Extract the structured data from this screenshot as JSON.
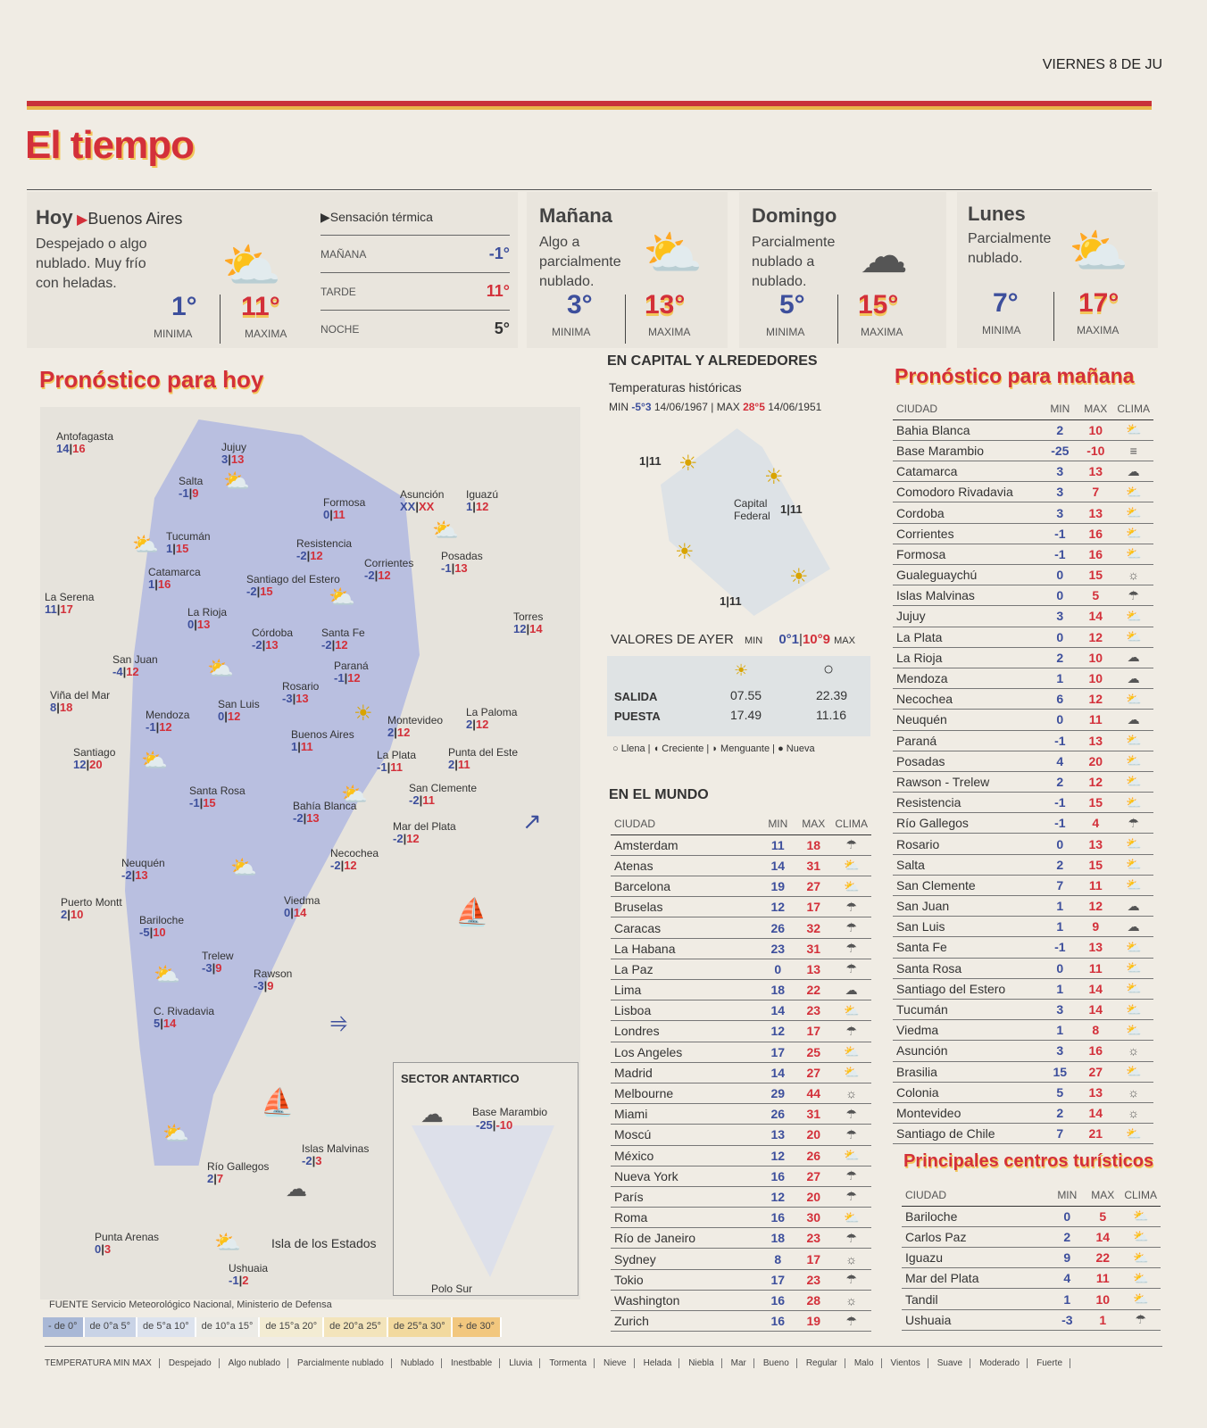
{
  "header": {
    "date": "VIERNES 8 DE JU",
    "title": "El tiempo"
  },
  "today": {
    "title": "Hoy",
    "city": "Buenos Aires",
    "desc": "Despejado o algo nublado. Muy frío con heladas.",
    "min": "1°",
    "max": "11°",
    "min_label": "MINIMA",
    "max_label": "MAXIMA",
    "icon": "partly-cloudy"
  },
  "sensacion": {
    "title": "Sensación térmica",
    "rows": [
      {
        "label": "MAÑANA",
        "value": "-1°",
        "kind": "min"
      },
      {
        "label": "TARDE",
        "value": "11°",
        "kind": "max"
      },
      {
        "label": "NOCHE",
        "value": "5°",
        "kind": "neutral"
      }
    ]
  },
  "days": [
    {
      "title": "Mañana",
      "desc": "Algo a parcialmente nublado.",
      "min": "3°",
      "max": "13°",
      "icon": "partly-cloudy"
    },
    {
      "title": "Domingo",
      "desc": "Parcialmente nublado a nublado.",
      "min": "5°",
      "max": "15°",
      "icon": "cloudy"
    },
    {
      "title": "Lunes",
      "desc": "Parcialmente nublado.",
      "min": "7°",
      "max": "17°",
      "icon": "partly-cloudy"
    }
  ],
  "labels": {
    "min": "MINIMA",
    "max": "MAXIMA"
  },
  "map": {
    "title": "Pronóstico para hoy",
    "cities": [
      {
        "name": "Antofagasta",
        "min": "14",
        "max": "16"
      },
      {
        "name": "Jujuy",
        "min": "3",
        "max": "13"
      },
      {
        "name": "Salta",
        "min": "-1",
        "max": "9"
      },
      {
        "name": "Formosa",
        "min": "0",
        "max": "11"
      },
      {
        "name": "Asunción",
        "min": "XX",
        "max": "XX"
      },
      {
        "name": "Iguazú",
        "min": "1",
        "max": "12"
      },
      {
        "name": "Tucumán",
        "min": "1",
        "max": "15"
      },
      {
        "name": "Resistencia",
        "min": "-2",
        "max": "12"
      },
      {
        "name": "Corrientes",
        "min": "-2",
        "max": "12"
      },
      {
        "name": "Posadas",
        "min": "-1",
        "max": "13"
      },
      {
        "name": "Catamarca",
        "min": "1",
        "max": "16"
      },
      {
        "name": "Santiago del Estero",
        "min": "-2",
        "max": "15"
      },
      {
        "name": "La Serena",
        "min": "11",
        "max": "17"
      },
      {
        "name": "La Rioja",
        "min": "0",
        "max": "13"
      },
      {
        "name": "Córdoba",
        "min": "-2",
        "max": "13"
      },
      {
        "name": "Santa Fe",
        "min": "-2",
        "max": "12"
      },
      {
        "name": "Torres",
        "min": "12",
        "max": "14"
      },
      {
        "name": "San Juan",
        "min": "-4",
        "max": "12"
      },
      {
        "name": "Paraná",
        "min": "-1",
        "max": "12"
      },
      {
        "name": "Rosario",
        "min": "-3",
        "max": "13"
      },
      {
        "name": "Viña del Mar",
        "min": "8",
        "max": "18"
      },
      {
        "name": "San Luis",
        "min": "0",
        "max": "12"
      },
      {
        "name": "Mendoza",
        "min": "-1",
        "max": "12"
      },
      {
        "name": "Montevideo",
        "min": "2",
        "max": "12"
      },
      {
        "name": "La Paloma",
        "min": "2",
        "max": "12"
      },
      {
        "name": "Buenos Aires",
        "min": "1",
        "max": "11"
      },
      {
        "name": "La Plata",
        "min": "-1",
        "max": "11"
      },
      {
        "name": "Punta del Este",
        "min": "2",
        "max": "11"
      },
      {
        "name": "Santiago",
        "min": "12",
        "max": "20"
      },
      {
        "name": "Santa Rosa",
        "min": "-1",
        "max": "15"
      },
      {
        "name": "San Clemente",
        "min": "-2",
        "max": "11"
      },
      {
        "name": "Bahía Blanca",
        "min": "-2",
        "max": "13"
      },
      {
        "name": "Mar del Plata",
        "min": "-2",
        "max": "12"
      },
      {
        "name": "Necochea",
        "min": "-2",
        "max": "12"
      },
      {
        "name": "Neuquén",
        "min": "-2",
        "max": "13"
      },
      {
        "name": "Puerto Montt",
        "min": "2",
        "max": "10"
      },
      {
        "name": "Viedma",
        "min": "0",
        "max": "14"
      },
      {
        "name": "Bariloche",
        "min": "-5",
        "max": "10"
      },
      {
        "name": "Trelew",
        "min": "-3",
        "max": "9"
      },
      {
        "name": "Rawson",
        "min": "-3",
        "max": "9"
      },
      {
        "name": "C. Rivadavia",
        "min": "5",
        "max": "14"
      },
      {
        "name": "Islas Malvinas",
        "min": "-2",
        "max": "3"
      },
      {
        "name": "Río Gallegos",
        "min": "2",
        "max": "7"
      },
      {
        "name": "Punta Arenas",
        "min": "0",
        "max": "3"
      },
      {
        "name": "Ushuaia",
        "min": "-1",
        "max": "2"
      }
    ],
    "isla": "Isla de los Estados",
    "antartico": {
      "title": "SECTOR ANTARTICO",
      "base": "Base Marambio",
      "min": "-25",
      "max": "-10",
      "polo": "Polo Sur"
    },
    "source": "FUENTE Servicio Meteorológico Nacional, Ministerio de Defensa",
    "scale": [
      {
        "label": "- de 0°",
        "color": "#a9b8d6"
      },
      {
        "label": "de 0°a 5°",
        "color": "#c9d3e6"
      },
      {
        "label": "de 5°a 10°",
        "color": "#dde3ee"
      },
      {
        "label": "de 10°a 15°",
        "color": "#ecebe6"
      },
      {
        "label": "de 15°a 20°",
        "color": "#f3ecd3"
      },
      {
        "label": "de 20°a 25°",
        "color": "#f3e4bb"
      },
      {
        "label": "de 25°a 30°",
        "color": "#f2d99e"
      },
      {
        "label": "+ de 30°",
        "color": "#f2c77e"
      }
    ]
  },
  "capital": {
    "title": "EN CAPITAL Y ALREDEDORES",
    "hist_title": "Temperaturas históricas",
    "hist_min_label": "MIN",
    "hist_min": "-5°3",
    "hist_min_date": "14/06/1967",
    "hist_max_label": "MAX",
    "hist_max": "28°5",
    "hist_max_date": "14/06/1951",
    "area": "Capital Federal",
    "temps": [
      "1|11",
      "1|11",
      "1|11"
    ],
    "ayer_title": "VALORES DE AYER",
    "ayer_min_label": "MIN",
    "ayer_min": "0°1",
    "ayer_max": "10°9",
    "ayer_max_label": "MAX",
    "salida_label": "SALIDA",
    "puesta_label": "PUESTA",
    "sol_salida": "07.55",
    "sol_puesta": "17.49",
    "luna_salida": "22.39",
    "luna_puesta": "11.16",
    "moon": [
      "Llena",
      "Creciente",
      "Menguante",
      "Nueva"
    ]
  },
  "mundo": {
    "title": "EN EL MUNDO",
    "headers": [
      "CIUDAD",
      "MIN",
      "MAX",
      "CLIMA"
    ],
    "rows": [
      [
        "Amsterdam",
        "11",
        "18",
        "lluvia"
      ],
      [
        "Atenas",
        "14",
        "31",
        "parcial"
      ],
      [
        "Barcelona",
        "19",
        "27",
        "parcial"
      ],
      [
        "Bruselas",
        "12",
        "17",
        "lluvia"
      ],
      [
        "Caracas",
        "26",
        "32",
        "lluvia"
      ],
      [
        "La Habana",
        "23",
        "31",
        "lluvia"
      ],
      [
        "La Paz",
        "0",
        "13",
        "lluvia"
      ],
      [
        "Lima",
        "18",
        "22",
        "nublado"
      ],
      [
        "Lisboa",
        "14",
        "23",
        "parcial"
      ],
      [
        "Londres",
        "12",
        "17",
        "lluvia"
      ],
      [
        "Los Angeles",
        "17",
        "25",
        "parcial"
      ],
      [
        "Madrid",
        "14",
        "27",
        "parcial"
      ],
      [
        "Melbourne",
        "29",
        "44",
        "despejado"
      ],
      [
        "Miami",
        "26",
        "31",
        "lluvia"
      ],
      [
        "Moscú",
        "13",
        "20",
        "lluvia"
      ],
      [
        "México",
        "12",
        "26",
        "parcial"
      ],
      [
        "Nueva York",
        "16",
        "27",
        "lluvia"
      ],
      [
        "París",
        "12",
        "20",
        "lluvia"
      ],
      [
        "Roma",
        "16",
        "30",
        "parcial"
      ],
      [
        "Río de Janeiro",
        "18",
        "23",
        "lluvia"
      ],
      [
        "Sydney",
        "8",
        "17",
        "despejado"
      ],
      [
        "Tokio",
        "17",
        "23",
        "lluvia"
      ],
      [
        "Washington",
        "16",
        "28",
        "despejado"
      ],
      [
        "Zurich",
        "16",
        "19",
        "lluvia"
      ]
    ]
  },
  "manana": {
    "title": "Pronóstico para mañana",
    "headers": [
      "CIUDAD",
      "MIN",
      "MAX",
      "CLIMA"
    ],
    "rows": [
      [
        "Bahia Blanca",
        "2",
        "10",
        "parcial"
      ],
      [
        "Base Marambio",
        "-25",
        "-10",
        "niebla"
      ],
      [
        "Catamarca",
        "3",
        "13",
        "nublado"
      ],
      [
        "Comodoro Rivadavia",
        "3",
        "7",
        "parcial"
      ],
      [
        "Cordoba",
        "3",
        "13",
        "parcial"
      ],
      [
        "Corrientes",
        "-1",
        "16",
        "parcial"
      ],
      [
        "Formosa",
        "-1",
        "16",
        "parcial"
      ],
      [
        "Gualeguaychú",
        "0",
        "15",
        "despejado"
      ],
      [
        "Islas Malvinas",
        "0",
        "5",
        "lluvia"
      ],
      [
        "Jujuy",
        "3",
        "14",
        "parcial"
      ],
      [
        "La Plata",
        "0",
        "12",
        "parcial"
      ],
      [
        "La Rioja",
        "2",
        "10",
        "nublado"
      ],
      [
        "Mendoza",
        "1",
        "10",
        "nublado"
      ],
      [
        "Necochea",
        "6",
        "12",
        "parcial"
      ],
      [
        "Neuquén",
        "0",
        "11",
        "nublado"
      ],
      [
        "Paraná",
        "-1",
        "13",
        "algo"
      ],
      [
        "Posadas",
        "4",
        "20",
        "algo"
      ],
      [
        "Rawson - Trelew",
        "2",
        "12",
        "parcial"
      ],
      [
        "Resistencia",
        "-1",
        "15",
        "parcial"
      ],
      [
        "Río Gallegos",
        "-1",
        "4",
        "lluvia"
      ],
      [
        "Rosario",
        "0",
        "13",
        "parcial"
      ],
      [
        "Salta",
        "2",
        "15",
        "parcial"
      ],
      [
        "San Clemente",
        "7",
        "11",
        "parcial"
      ],
      [
        "San Juan",
        "1",
        "12",
        "nublado"
      ],
      [
        "San Luis",
        "1",
        "9",
        "nublado"
      ],
      [
        "Santa Fe",
        "-1",
        "13",
        "parcial"
      ],
      [
        "Santa Rosa",
        "0",
        "11",
        "parcial"
      ],
      [
        "Santiago del Estero",
        "1",
        "14",
        "parcial"
      ],
      [
        "Tucumán",
        "3",
        "14",
        "parcial"
      ],
      [
        "Viedma",
        "1",
        "8",
        "parcial"
      ],
      [
        "Asunción",
        "3",
        "16",
        "despejado"
      ],
      [
        "Brasilia",
        "15",
        "27",
        "algo"
      ],
      [
        "Colonia",
        "5",
        "13",
        "despejado"
      ],
      [
        "Montevideo",
        "2",
        "14",
        "despejado"
      ],
      [
        "Santiago de Chile",
        "7",
        "21",
        "parcial"
      ]
    ]
  },
  "turisticos": {
    "title": "Principales centros turísticos",
    "headers": [
      "CIUDAD",
      "MIN",
      "MAX",
      "CLIMA"
    ],
    "rows": [
      [
        "Bariloche",
        "0",
        "5",
        "parcial"
      ],
      [
        "Carlos Paz",
        "2",
        "14",
        "parcial"
      ],
      [
        "Iguazu",
        "9",
        "22",
        "algo"
      ],
      [
        "Mar del Plata",
        "4",
        "11",
        "parcial"
      ],
      [
        "Tandil",
        "1",
        "10",
        "parcial"
      ],
      [
        "Ushuaia",
        "-3",
        "1",
        "lluvia"
      ]
    ]
  },
  "legend": [
    "TEMPERATURA MIN MAX",
    "Despejado",
    "Algo nublado",
    "Parcialmente nublado",
    "Nublado",
    "Inestbable",
    "Lluvia",
    "Tormenta",
    "Nieve",
    "Helada",
    "Niebla",
    "Mar",
    "Bueno",
    "Regular",
    "Malo",
    "Vientos",
    "Suave",
    "Moderado",
    "Fuerte"
  ],
  "colors": {
    "red": "#d3303a",
    "blue": "#3d4f9c",
    "yellow": "#f2c65a",
    "land": "#b9bfe0"
  }
}
